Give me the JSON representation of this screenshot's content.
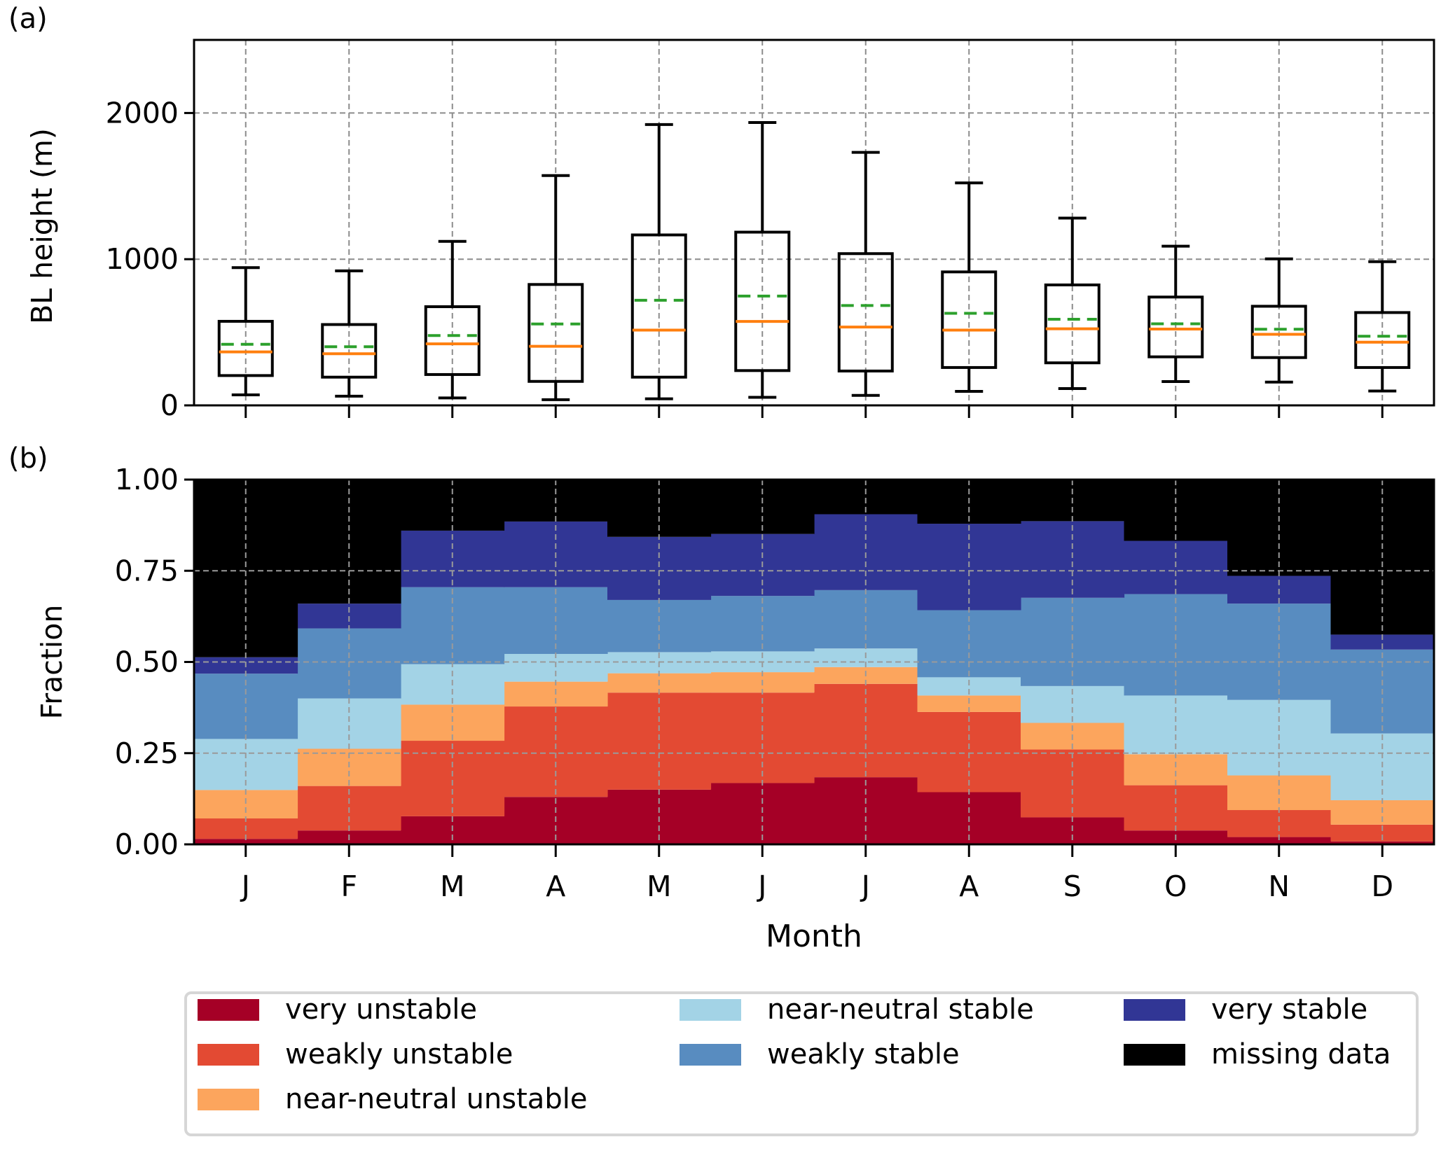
{
  "figure": {
    "panel_a_label": "(a)",
    "panel_b_label": "(b)"
  },
  "chart_data": [
    {
      "type": "box",
      "panel": "a",
      "title": "",
      "xlabel": "",
      "ylabel": "BL height (m)",
      "ylim": [
        0,
        2500
      ],
      "yticks": [
        0,
        1000,
        2000
      ],
      "ytick_labels": [
        "0",
        "1000",
        "2000"
      ],
      "grid": true,
      "categories": [
        "J",
        "F",
        "M",
        "A",
        "M",
        "J",
        "J",
        "A",
        "S",
        "O",
        "N",
        "D"
      ],
      "show_xtick_labels": false,
      "median_color": "#ff7f0e",
      "mean_color": "#2ca02c",
      "mean_style": "dashed",
      "boxes": [
        {
          "whisker_low": 72,
          "q1": 204,
          "median": 366,
          "mean": 418,
          "q3": 575,
          "whisker_high": 942
        },
        {
          "whisker_low": 63,
          "q1": 193,
          "median": 353,
          "mean": 401,
          "q3": 553,
          "whisker_high": 920
        },
        {
          "whisker_low": 51,
          "q1": 211,
          "median": 421,
          "mean": 478,
          "q3": 675,
          "whisker_high": 1122
        },
        {
          "whisker_low": 39,
          "q1": 164,
          "median": 404,
          "mean": 557,
          "q3": 827,
          "whisker_high": 1572
        },
        {
          "whisker_low": 45,
          "q1": 193,
          "median": 515,
          "mean": 719,
          "q3": 1166,
          "whisker_high": 1921
        },
        {
          "whisker_low": 55,
          "q1": 238,
          "median": 574,
          "mean": 748,
          "q3": 1185,
          "whisker_high": 1935
        },
        {
          "whisker_low": 68,
          "q1": 235,
          "median": 536,
          "mean": 683,
          "q3": 1038,
          "whisker_high": 1731
        },
        {
          "whisker_low": 96,
          "q1": 259,
          "median": 515,
          "mean": 630,
          "q3": 913,
          "whisker_high": 1522
        },
        {
          "whisker_low": 115,
          "q1": 291,
          "median": 524,
          "mean": 589,
          "q3": 824,
          "whisker_high": 1281
        },
        {
          "whisker_low": 163,
          "q1": 332,
          "median": 522,
          "mean": 558,
          "q3": 741,
          "whisker_high": 1089
        },
        {
          "whisker_low": 159,
          "q1": 327,
          "median": 486,
          "mean": 521,
          "q3": 678,
          "whisker_high": 1002
        },
        {
          "whisker_low": 98,
          "q1": 259,
          "median": 432,
          "mean": 473,
          "q3": 635,
          "whisker_high": 983
        }
      ]
    },
    {
      "type": "area",
      "stacked": true,
      "step": true,
      "panel": "b",
      "title": "",
      "xlabel": "Month",
      "ylabel": "Fraction",
      "ylim": [
        0,
        1
      ],
      "yticks": [
        0,
        0.25,
        0.5,
        0.75,
        1.0
      ],
      "ytick_labels": [
        "0.00",
        "0.25",
        "0.50",
        "0.75",
        "1.00"
      ],
      "grid": true,
      "categories": [
        "J",
        "F",
        "M",
        "A",
        "M",
        "J",
        "J",
        "A",
        "S",
        "O",
        "N",
        "D"
      ],
      "legend_position": "bottom",
      "series": [
        {
          "name": "very unstable",
          "color": "#a50026",
          "values": [
            0.015,
            0.038,
            0.077,
            0.13,
            0.15,
            0.168,
            0.184,
            0.143,
            0.074,
            0.038,
            0.02,
            0.008
          ]
        },
        {
          "name": "weakly unstable",
          "color": "#e34a33",
          "values": [
            0.056,
            0.122,
            0.207,
            0.248,
            0.266,
            0.248,
            0.256,
            0.22,
            0.186,
            0.124,
            0.074,
            0.046
          ]
        },
        {
          "name": "near-neutral unstable",
          "color": "#fca55d",
          "values": [
            0.078,
            0.102,
            0.099,
            0.068,
            0.053,
            0.056,
            0.046,
            0.045,
            0.073,
            0.085,
            0.095,
            0.067
          ]
        },
        {
          "name": "near-neutral stable",
          "color": "#a3d3e6",
          "values": [
            0.14,
            0.138,
            0.111,
            0.076,
            0.058,
            0.057,
            0.051,
            0.05,
            0.101,
            0.161,
            0.207,
            0.183
          ]
        },
        {
          "name": "weakly stable",
          "color": "#588cc0",
          "values": [
            0.179,
            0.192,
            0.211,
            0.183,
            0.143,
            0.152,
            0.16,
            0.184,
            0.242,
            0.278,
            0.264,
            0.23
          ]
        },
        {
          "name": "very stable",
          "color": "#313695",
          "values": [
            0.045,
            0.068,
            0.155,
            0.18,
            0.173,
            0.17,
            0.208,
            0.237,
            0.21,
            0.146,
            0.076,
            0.041
          ]
        },
        {
          "name": "missing data",
          "color": "#000000",
          "values": [
            0.487,
            0.34,
            0.14,
            0.115,
            0.157,
            0.149,
            0.095,
            0.121,
            0.114,
            0.168,
            0.264,
            0.425
          ]
        }
      ]
    }
  ],
  "legend": {
    "items": [
      {
        "label": "very unstable",
        "color": "#a50026"
      },
      {
        "label": "weakly unstable",
        "color": "#e34a33"
      },
      {
        "label": "near-neutral unstable",
        "color": "#fca55d"
      },
      {
        "label": "near-neutral stable",
        "color": "#a3d3e6"
      },
      {
        "label": "weakly stable",
        "color": "#588cc0"
      },
      {
        "label": "very stable",
        "color": "#313695"
      },
      {
        "label": "missing data",
        "color": "#000000"
      }
    ]
  }
}
